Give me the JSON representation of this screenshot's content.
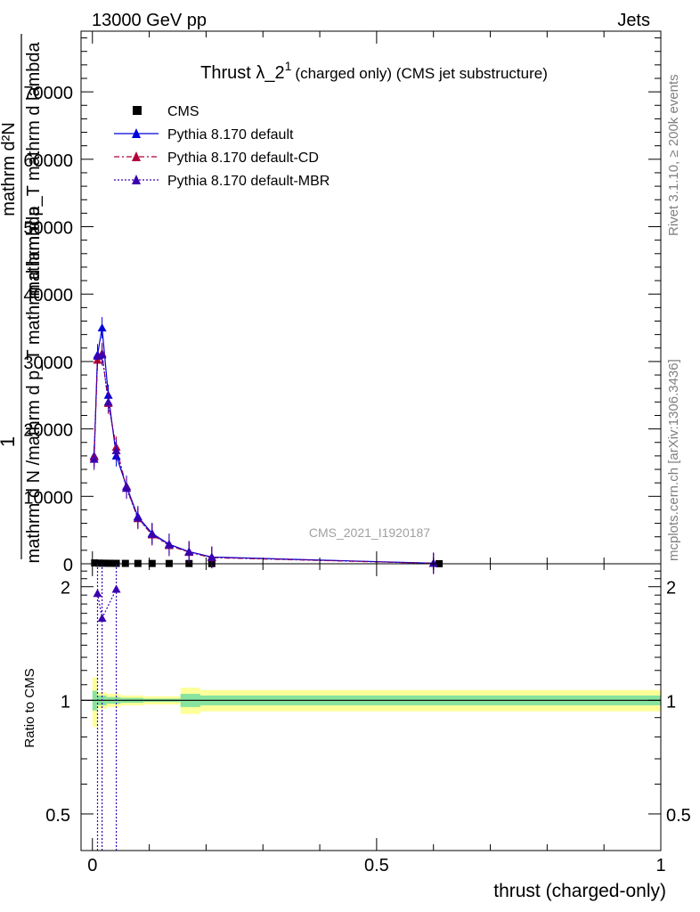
{
  "header": {
    "left": "13000 GeV pp",
    "right": "Jets"
  },
  "side_labels": {
    "rivet": "Rivet 3.1.10, ≥ 200k events",
    "mcplots": "mcplots.cern.ch [arXiv:1306.3436]"
  },
  "watermark": "CMS_2021_I1920187",
  "chart_data": [
    {
      "type": "line",
      "title": "Thrust λ_2¹ (charged only) (CMS jet substructure)",
      "title_main": "Thrust λ_2",
      "title_sup": "1",
      "title_rest": "(charged only) (CMS jet substructure)",
      "ylabel_lines": [
        "1",
        "mathrm d N /mathrm d p_T mathrm d lambda",
        "mathrm d²N",
        "mathrm d p_T mathrm d lambda"
      ],
      "xlim": [
        -0.02,
        1.0
      ],
      "ylim": [
        0,
        79000
      ],
      "yticks": [
        0,
        10000,
        20000,
        30000,
        40000,
        50000,
        60000,
        70000
      ],
      "ytick_labels": [
        "0",
        "10000",
        "20000",
        "30000",
        "40000",
        "50000",
        "60000",
        "70000"
      ],
      "legend_position": "top-left",
      "series": [
        {
          "name": "CMS",
          "style": "markers",
          "color": "#000000",
          "x": [
            0.004,
            0.012,
            0.02,
            0.03,
            0.042,
            0.058,
            0.08,
            0.105,
            0.135,
            0.17,
            0.21,
            0.61
          ],
          "y": [
            120,
            90,
            80,
            70,
            60,
            55,
            50,
            45,
            40,
            35,
            30,
            10
          ]
        },
        {
          "name": "Pythia 8.170 default",
          "style": "solid",
          "color": "#0000dd",
          "x": [
            0.003,
            0.009,
            0.017,
            0.028,
            0.042,
            0.06,
            0.08,
            0.105,
            0.135,
            0.17,
            0.21,
            0.6
          ],
          "y": [
            16000,
            31000,
            35000,
            25000,
            16000,
            11500,
            7000,
            4500,
            2900,
            1800,
            1000,
            80
          ]
        },
        {
          "name": "Pythia 8.170 default-CD",
          "style": "dashdot",
          "color": "#b0003a",
          "x": [
            0.003,
            0.009,
            0.017,
            0.028,
            0.042,
            0.06,
            0.08,
            0.105,
            0.135,
            0.17,
            0.21,
            0.6
          ],
          "y": [
            15800,
            30200,
            31200,
            23800,
            17300,
            11300,
            6700,
            4300,
            2700,
            1700,
            900,
            60
          ]
        },
        {
          "name": "Pythia 8.170 default-MBR",
          "style": "dotted",
          "color": "#3a00b0",
          "x": [
            0.003,
            0.009,
            0.017,
            0.028,
            0.042,
            0.06,
            0.08,
            0.105,
            0.135,
            0.17,
            0.21,
            0.6
          ],
          "y": [
            15500,
            30800,
            31000,
            24000,
            16800,
            11200,
            6800,
            4400,
            2800,
            1750,
            950,
            70
          ]
        }
      ]
    },
    {
      "type": "line",
      "ylabel": "Ratio to CMS",
      "xlabel": "thrust (charged-only)",
      "xlim": [
        -0.02,
        1.0
      ],
      "ylim": [
        0.4,
        2.3
      ],
      "log_y": true,
      "yticks": [
        0.5,
        1,
        2
      ],
      "ytick_labels": [
        "0.5",
        "1",
        "2"
      ],
      "xticks": [
        0,
        0.5,
        1
      ],
      "xtick_labels": [
        "0",
        "0.5",
        "1"
      ],
      "band_bins": [
        {
          "x0": 0.0,
          "x1": 0.008,
          "inner": 0.06,
          "outer": 0.15
        },
        {
          "x0": 0.008,
          "x1": 0.025,
          "inner": 0.03,
          "outer": 0.05
        },
        {
          "x0": 0.025,
          "x1": 0.05,
          "inner": 0.02,
          "outer": 0.04
        },
        {
          "x0": 0.05,
          "x1": 0.09,
          "inner": 0.015,
          "outer": 0.03
        },
        {
          "x0": 0.09,
          "x1": 0.155,
          "inner": 0.01,
          "outer": 0.025
        },
        {
          "x0": 0.155,
          "x1": 0.19,
          "inner": 0.04,
          "outer": 0.08
        },
        {
          "x0": 0.19,
          "x1": 1.0,
          "inner": 0.03,
          "outer": 0.065
        }
      ],
      "series": [
        {
          "name": "Pythia 8.170 default-MBR",
          "color": "#3a00b0",
          "x": [
            0.009,
            0.017,
            0.042
          ],
          "y": [
            1.92,
            1.65,
            1.97
          ]
        }
      ]
    }
  ]
}
